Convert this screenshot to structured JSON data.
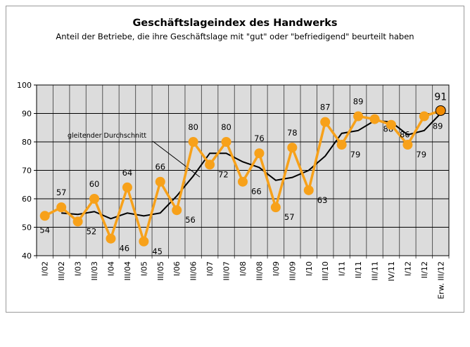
{
  "chart_data": {
    "type": "line",
    "title": "Geschäftslageindex des Handwerks",
    "subtitle": "Anteil der Betriebe, die ihre Geschäftslage mit \"gut\" oder \"befriedigend\" beurteilt haben",
    "categories": [
      "I/02",
      "III/02",
      "I/03",
      "III/03",
      "I/04",
      "III/04",
      "I/05",
      "III/05",
      "I/06",
      "III/06",
      "I/07",
      "III/07",
      "I/08",
      "III/08",
      "I/09",
      "III/09",
      "I/10",
      "III/10",
      "I/11",
      "II/11",
      "III/11",
      "IV/11",
      "I/12",
      "II/12",
      "Erw. III/12"
    ],
    "ylim": [
      40,
      100
    ],
    "yticks": [
      40,
      50,
      60,
      70,
      80,
      90,
      100
    ],
    "grid": true,
    "series": [
      {
        "values": [
          54,
          57,
          52,
          60,
          46,
          64,
          45,
          66,
          56,
          80,
          72,
          80,
          66,
          76,
          57,
          78,
          63,
          87,
          79,
          89,
          88,
          86,
          79,
          89,
          91
        ],
        "color": "#f7a11a",
        "highlight_last_color": "#f08a00"
      },
      {
        "name": "gleitender Durchschnitt",
        "values": [
          null,
          55,
          54.5,
          55.5,
          53,
          55,
          54,
          55,
          61,
          68,
          76,
          76,
          73,
          71,
          66.5,
          67.5,
          70,
          75,
          83,
          84,
          87.5,
          87,
          82.5,
          84,
          90
        ],
        "color": "#000000"
      }
    ],
    "annotation": "gleitender Durchschnitt",
    "plot_background": "#dcdcdc"
  }
}
